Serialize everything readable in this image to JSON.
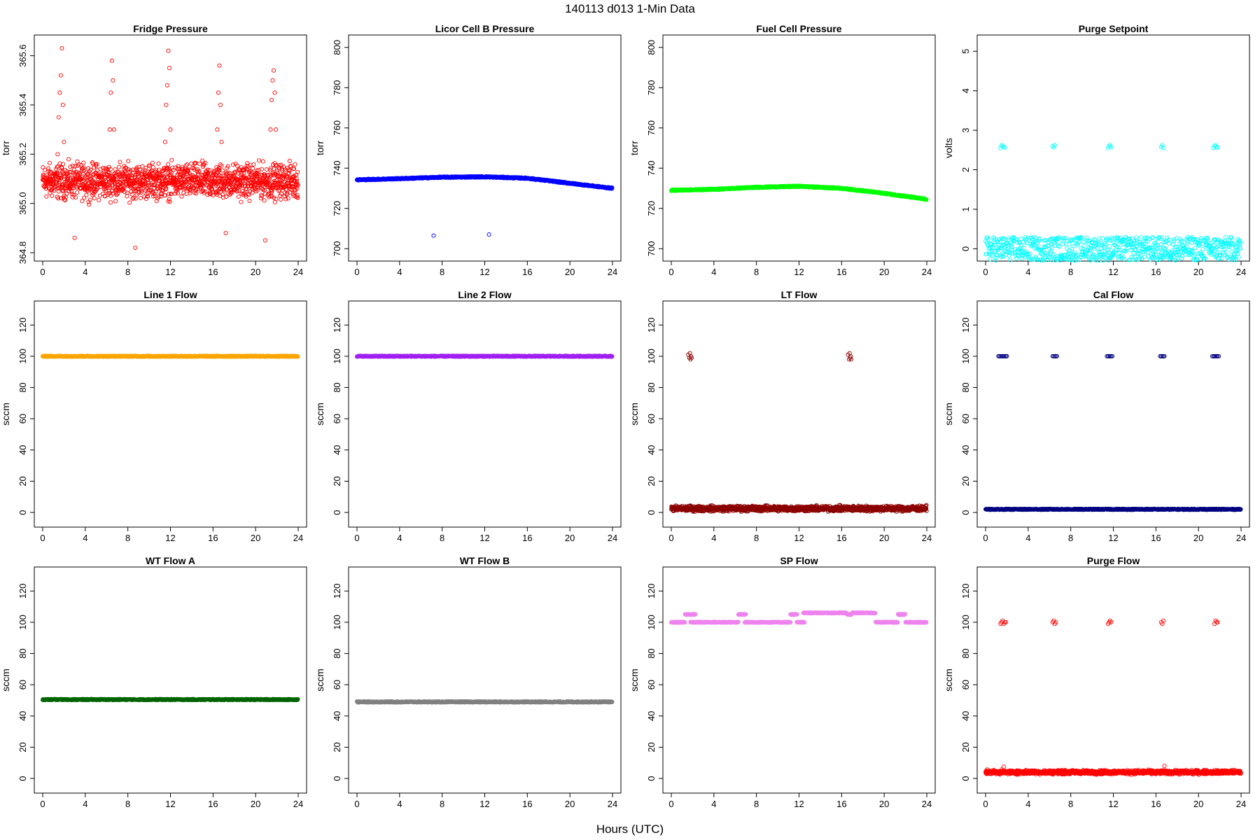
{
  "figure": {
    "title": "140113    d013    1-Min Data",
    "xlabel": "Hours (UTC)"
  },
  "chart_data": [
    {
      "type": "scatter",
      "title": "Fridge Pressure",
      "ylabel": "torr",
      "color": "#FF0000",
      "xlim": [
        0,
        24
      ],
      "ylim": [
        364.8,
        365.65
      ],
      "xticks": [
        0,
        4,
        8,
        12,
        16,
        20,
        24
      ],
      "yticks": [
        364.8,
        365.0,
        365.2,
        365.4,
        365.6
      ],
      "tick_labels_y": [
        "364.8",
        "365.0",
        "365.2",
        "365.4",
        "365.6"
      ],
      "series": [
        {
          "noise": {
            "base": 365.09,
            "spread": 0.1
          },
          "x": [
            1.4,
            1.5,
            1.6,
            1.7,
            1.8,
            1.9,
            2.0,
            6.3,
            6.4,
            6.5,
            6.6,
            6.7,
            11.5,
            11.6,
            11.7,
            11.8,
            11.9,
            12.0,
            16.4,
            16.5,
            16.6,
            16.7,
            16.8,
            21.4,
            21.5,
            21.6,
            21.7,
            21.8,
            21.9,
            8.7,
            20.9,
            3.0,
            17.2
          ],
          "y": [
            365.2,
            365.35,
            365.45,
            365.52,
            365.63,
            365.4,
            365.25,
            365.3,
            365.45,
            365.58,
            365.5,
            365.3,
            365.25,
            365.4,
            365.48,
            365.62,
            365.55,
            365.3,
            365.3,
            365.45,
            365.56,
            365.4,
            365.25,
            365.3,
            365.42,
            365.5,
            365.54,
            365.45,
            365.3,
            364.82,
            364.85,
            364.86,
            364.88
          ]
        }
      ]
    },
    {
      "type": "scatter",
      "title": "Licor Cell B Pressure",
      "ylabel": "torr",
      "color": "#0000FF",
      "xlim": [
        0,
        24
      ],
      "ylim": [
        698,
        802
      ],
      "xticks": [
        0,
        4,
        8,
        12,
        16,
        20,
        24
      ],
      "yticks": [
        700,
        720,
        740,
        760,
        780,
        800
      ],
      "series": [
        {
          "curve": {
            "x": [
              0,
              4,
              8,
              12,
              16,
              20,
              24
            ],
            "y": [
              734.2,
              734.8,
              735.5,
              735.7,
              735.0,
              732.5,
              730.0
            ]
          },
          "x": [
            7.2,
            12.4
          ],
          "y": [
            706.5,
            707.0
          ]
        }
      ]
    },
    {
      "type": "scatter",
      "title": "Fuel Cell Pressure",
      "ylabel": "torr",
      "color": "#00FF00",
      "xlim": [
        0,
        24
      ],
      "ylim": [
        698,
        802
      ],
      "xticks": [
        0,
        4,
        8,
        12,
        16,
        20,
        24
      ],
      "yticks": [
        700,
        720,
        740,
        760,
        780,
        800
      ],
      "series": [
        {
          "curve": {
            "x": [
              0,
              4,
              8,
              12,
              16,
              20,
              24
            ],
            "y": [
              729.0,
              729.5,
              730.5,
              731.0,
              730.0,
              727.5,
              724.5
            ]
          }
        }
      ]
    },
    {
      "type": "scatter",
      "title": "Purge Setpoint",
      "ylabel": "volts",
      "color": "#00FFFF",
      "xlim": [
        0,
        24
      ],
      "ylim": [
        -0.1,
        5.2
      ],
      "xticks": [
        0,
        4,
        8,
        12,
        16,
        20,
        24
      ],
      "yticks": [
        0,
        1,
        2,
        3,
        4,
        5
      ],
      "series": [
        {
          "flat": 0,
          "x": [
            1.4,
            1.5,
            1.6,
            1.7,
            1.8,
            6.3,
            6.4,
            6.5,
            11.5,
            11.6,
            11.7,
            11.8,
            16.5,
            16.6,
            16.7,
            21.4,
            21.5,
            21.6,
            21.7,
            21.8
          ],
          "y": [
            2.55,
            2.62,
            2.6,
            2.58,
            2.56,
            2.6,
            2.57,
            2.62,
            2.55,
            2.6,
            2.62,
            2.57,
            2.58,
            2.62,
            2.55,
            2.55,
            2.6,
            2.62,
            2.58,
            2.56
          ]
        }
      ]
    },
    {
      "type": "scatter",
      "title": "Line 1 Flow",
      "ylabel": "sccm",
      "color": "#FFA500",
      "xlim": [
        0,
        24
      ],
      "ylim": [
        -4,
        130
      ],
      "xticks": [
        0,
        4,
        8,
        12,
        16,
        20,
        24
      ],
      "yticks": [
        0,
        20,
        40,
        60,
        80,
        100,
        120
      ],
      "series": [
        {
          "flat": 100
        }
      ]
    },
    {
      "type": "scatter",
      "title": "Line 2 Flow",
      "ylabel": "sccm",
      "color": "#A020F0",
      "xlim": [
        0,
        24
      ],
      "ylim": [
        -4,
        130
      ],
      "xticks": [
        0,
        4,
        8,
        12,
        16,
        20,
        24
      ],
      "yticks": [
        0,
        20,
        40,
        60,
        80,
        100,
        120
      ],
      "series": [
        {
          "flat": 100
        }
      ]
    },
    {
      "type": "scatter",
      "title": "LT Flow",
      "ylabel": "sccm",
      "color": "#8B0000",
      "xlim": [
        0,
        24
      ],
      "ylim": [
        -4,
        130
      ],
      "xticks": [
        0,
        4,
        8,
        12,
        16,
        20,
        24
      ],
      "yticks": [
        0,
        20,
        40,
        60,
        80,
        100,
        120
      ],
      "series": [
        {
          "noise": {
            "base": 2.5,
            "spread": 2.5
          },
          "x": [
            1.6,
            1.7,
            1.75,
            1.8,
            1.85,
            1.9,
            16.6,
            16.7,
            16.75,
            16.8,
            16.85,
            16.9
          ],
          "y": [
            101,
            99,
            102,
            98,
            100,
            99,
            101,
            98,
            102,
            99,
            100,
            98
          ]
        }
      ]
    },
    {
      "type": "scatter",
      "title": "Cal Flow",
      "ylabel": "sccm",
      "color": "#000080",
      "xlim": [
        0,
        24
      ],
      "ylim": [
        -4,
        130
      ],
      "xticks": [
        0,
        4,
        8,
        12,
        16,
        20,
        24
      ],
      "yticks": [
        0,
        20,
        40,
        60,
        80,
        100,
        120
      ],
      "series": [
        {
          "flat": 2,
          "x": [
            1.2,
            1.3,
            1.4,
            1.5,
            1.6,
            1.7,
            1.8,
            1.9,
            2.0,
            6.3,
            6.4,
            6.5,
            6.6,
            6.7,
            11.4,
            11.5,
            11.6,
            11.7,
            11.8,
            11.9,
            16.4,
            16.5,
            16.6,
            16.7,
            16.8,
            21.3,
            21.4,
            21.5,
            21.6,
            21.7,
            21.8,
            21.9
          ],
          "y": [
            100,
            100,
            100,
            100,
            100,
            100,
            100,
            100,
            100,
            100,
            100,
            100,
            100,
            100,
            100,
            100,
            100,
            100,
            100,
            100,
            100,
            100,
            100,
            100,
            100,
            100,
            100,
            100,
            100,
            100,
            100,
            100
          ]
        }
      ]
    },
    {
      "type": "scatter",
      "title": "WT Flow A",
      "ylabel": "sccm",
      "color": "#006400",
      "xlim": [
        0,
        24
      ],
      "ylim": [
        -4,
        130
      ],
      "xticks": [
        0,
        4,
        8,
        12,
        16,
        20,
        24
      ],
      "yticks": [
        0,
        20,
        40,
        60,
        80,
        100,
        120
      ],
      "series": [
        {
          "flat": 50.5
        }
      ]
    },
    {
      "type": "scatter",
      "title": "WT Flow B",
      "ylabel": "sccm",
      "color": "#808080",
      "xlim": [
        0,
        24
      ],
      "ylim": [
        -4,
        130
      ],
      "xticks": [
        0,
        4,
        8,
        12,
        16,
        20,
        24
      ],
      "yticks": [
        0,
        20,
        40,
        60,
        80,
        100,
        120
      ],
      "series": [
        {
          "flat": 49
        }
      ]
    },
    {
      "type": "scatter",
      "title": "SP Flow",
      "ylabel": "sccm",
      "color": "#EE82EE",
      "xlim": [
        0,
        24
      ],
      "ylim": [
        -4,
        130
      ],
      "xticks": [
        0,
        4,
        8,
        12,
        16,
        20,
        24
      ],
      "yticks": [
        0,
        20,
        40,
        60,
        80,
        100,
        120
      ],
      "series": [
        {
          "steps": [
            [
              0.0,
              1.3,
              100
            ],
            [
              1.3,
              2.3,
              105
            ],
            [
              1.8,
              3.5,
              100
            ],
            [
              3.5,
              6.3,
              100
            ],
            [
              6.3,
              7.0,
              105
            ],
            [
              6.9,
              11.2,
              100
            ],
            [
              11.2,
              11.8,
              105
            ],
            [
              11.8,
              12.5,
              100
            ],
            [
              12.4,
              16.5,
              106
            ],
            [
              16.5,
              17.0,
              105
            ],
            [
              17.0,
              19.2,
              106
            ],
            [
              19.2,
              21.3,
              100
            ],
            [
              21.3,
              22.0,
              105
            ],
            [
              22.0,
              24.0,
              100
            ]
          ]
        }
      ]
    },
    {
      "type": "scatter",
      "title": "Purge Flow",
      "ylabel": "sccm",
      "color": "#FF0000",
      "xlim": [
        0,
        24
      ],
      "ylim": [
        -4,
        130
      ],
      "xticks": [
        0,
        4,
        8,
        12,
        16,
        20,
        24
      ],
      "yticks": [
        0,
        20,
        40,
        60,
        80,
        100,
        120
      ],
      "series": [
        {
          "noise": {
            "base": 4,
            "spread": 1.8
          },
          "x": [
            1.4,
            1.5,
            1.6,
            1.7,
            1.8,
            1.9,
            6.3,
            6.4,
            6.5,
            6.6,
            11.5,
            11.6,
            11.7,
            11.8,
            16.5,
            16.6,
            16.7,
            21.5,
            21.6,
            21.7,
            21.8,
            1.7,
            16.8
          ],
          "y": [
            99,
            100,
            101,
            99,
            100,
            100,
            100,
            101,
            99,
            100,
            99,
            100,
            101,
            100,
            100,
            99,
            101,
            99,
            101,
            100,
            100,
            7.5,
            8.0
          ]
        }
      ]
    }
  ]
}
